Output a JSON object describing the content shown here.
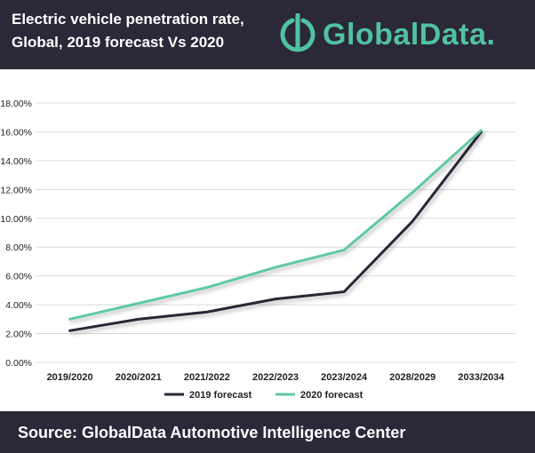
{
  "header": {
    "title_line1": "Electric vehicle penetration rate,",
    "title_line2": "Global, 2019 forecast Vs 2020",
    "logo_text": "GlobalData."
  },
  "footer": {
    "source": "Source:  GlobalData Automotive Intelligence Center"
  },
  "colors": {
    "header_bg": "#2b2838",
    "series_2019": "#2b2838",
    "series_2020": "#5ec9a2",
    "grid": "#d9d9d9",
    "logo": "#4fc2a0"
  },
  "chart_data": {
    "type": "line",
    "title": "Electric vehicle penetration rate, Global, 2019 forecast Vs 2020",
    "categories": [
      "2019/2020",
      "2020/2021",
      "2021/2022",
      "2022/2023",
      "2023/2024",
      "2028/2029",
      "2033/2034"
    ],
    "series": [
      {
        "name": "2019 forecast",
        "color": "#2b2838",
        "values": [
          2.2,
          3.0,
          3.5,
          4.4,
          4.9,
          9.8,
          16.0
        ]
      },
      {
        "name": "2020 forecast",
        "color": "#5ec9a2",
        "values": [
          3.0,
          4.1,
          5.2,
          6.6,
          7.8,
          11.8,
          16.1
        ]
      }
    ],
    "ylim": [
      0,
      18
    ],
    "yticks": [
      "0.00%",
      "2.00%",
      "4.00%",
      "6.00%",
      "8.00%",
      "10.00%",
      "12.00%",
      "14.00%",
      "16.00%",
      "18.00%"
    ],
    "ytick_values": [
      0,
      2,
      4,
      6,
      8,
      10,
      12,
      14,
      16,
      18
    ],
    "grid": true,
    "legend_position": "bottom"
  }
}
